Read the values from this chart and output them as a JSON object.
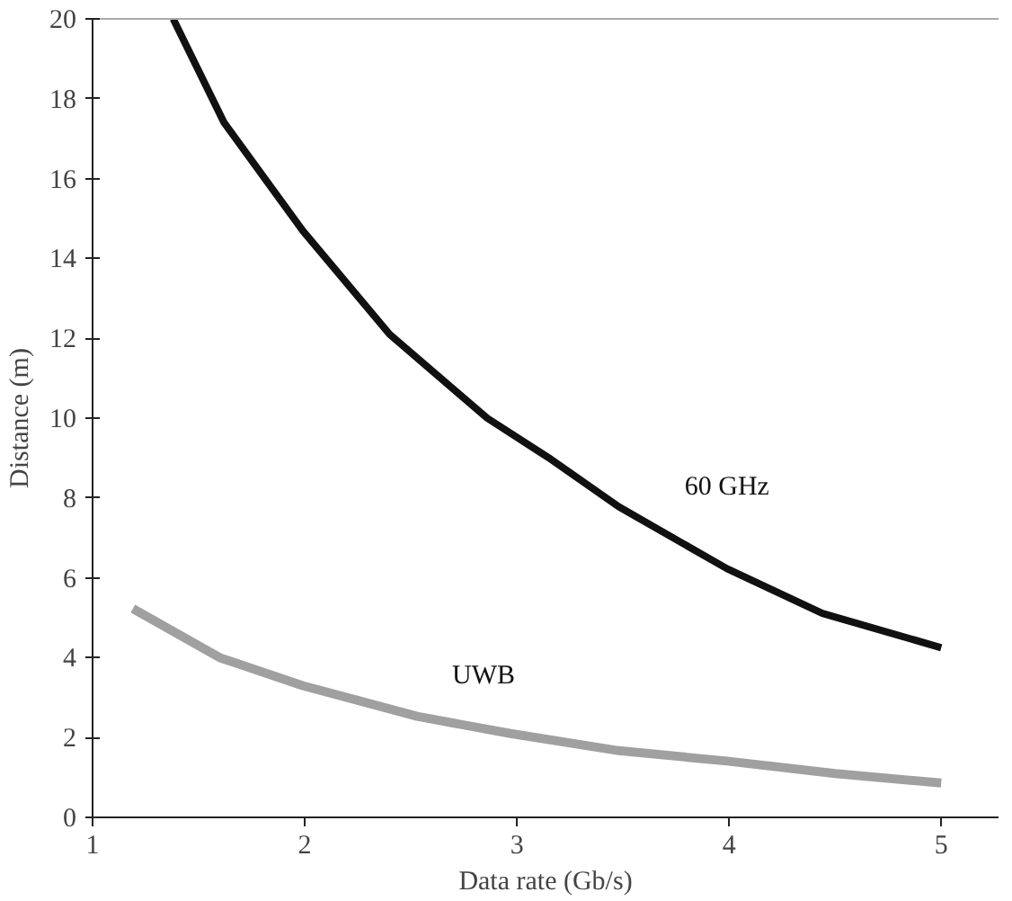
{
  "chart_data": {
    "type": "line",
    "xlabel": "Data rate (Gb/s)",
    "ylabel": "Distance (m)",
    "xlim": [
      1,
      5.27
    ],
    "xticks": [
      1,
      2,
      3,
      4,
      5
    ],
    "ylim": [
      0,
      20
    ],
    "yticks": [
      0,
      2,
      4,
      6,
      8,
      10,
      12,
      14,
      16,
      18,
      20
    ],
    "grid": false,
    "marker": "none",
    "line_style": "solid",
    "series": [
      {
        "name": "60 GHz",
        "color": "#111111",
        "x": [
          1.38,
          1.62,
          1.99,
          2.4,
          2.86,
          3.16,
          3.48,
          3.99,
          4.44,
          5
        ],
        "values": [
          20,
          17.4,
          14.7,
          12.1,
          10,
          8.97,
          7.78,
          6.23,
          5.11,
          4.25
        ]
      },
      {
        "name": "UWB",
        "color": "#a0a0a0",
        "x": [
          1.19,
          1.6,
          1.99,
          2.53,
          2.97,
          3.48,
          3.99,
          4.5,
          5
        ],
        "values": [
          5.23,
          4,
          3.3,
          2.53,
          2.1,
          1.67,
          1.41,
          1.1,
          0.86
        ]
      }
    ]
  }
}
